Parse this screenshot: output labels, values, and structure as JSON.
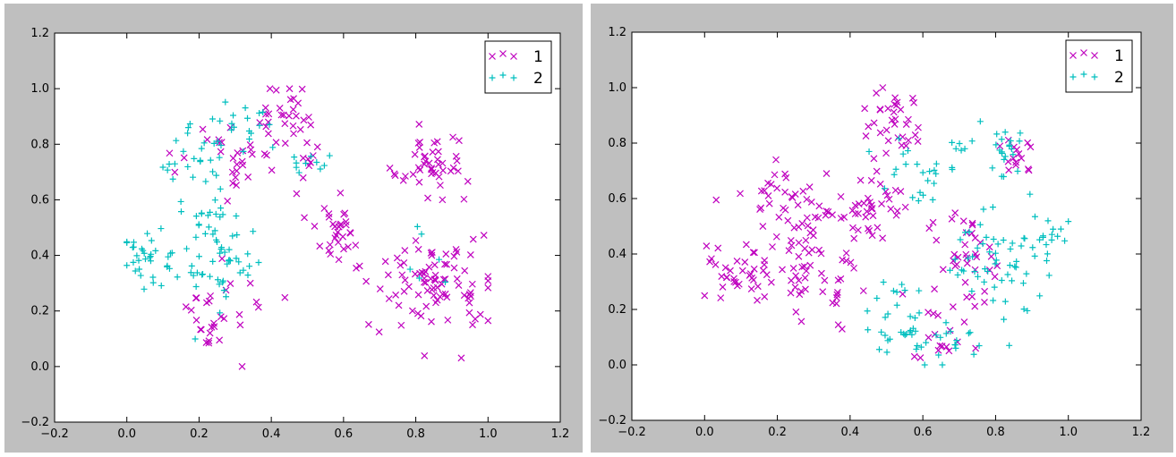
{
  "chart_data": [
    {
      "type": "scatter",
      "title": "",
      "xlabel": "",
      "ylabel": "",
      "xlim": [
        -0.2,
        1.2
      ],
      "ylim": [
        -0.2,
        1.2
      ],
      "x_ticks": [
        "−0.2",
        "0.0",
        "0.2",
        "0.4",
        "0.6",
        "0.8",
        "1.0",
        "1.2"
      ],
      "y_ticks": [
        "−0.2",
        "0.0",
        "0.2",
        "0.4",
        "0.6",
        "0.8",
        "1.0",
        "1.2"
      ],
      "grid": false,
      "legend": "top-right",
      "series": [
        {
          "name": "1",
          "marker": "x",
          "color": "#bf00bf",
          "clusters": [
            {
              "cx": 0.44,
              "cy": 0.92,
              "sx": 0.04,
              "sy": 0.05,
              "n": 25
            },
            {
              "cx": 0.3,
              "cy": 0.7,
              "sx": 0.08,
              "sy": 0.08,
              "n": 35
            },
            {
              "cx": 0.25,
              "cy": 0.2,
              "sx": 0.07,
              "sy": 0.08,
              "n": 30
            },
            {
              "cx": 0.58,
              "cy": 0.48,
              "sx": 0.03,
              "sy": 0.06,
              "n": 30
            },
            {
              "cx": 0.84,
              "cy": 0.73,
              "sx": 0.05,
              "sy": 0.05,
              "n": 45
            },
            {
              "cx": 0.85,
              "cy": 0.3,
              "sx": 0.08,
              "sy": 0.09,
              "n": 90
            },
            {
              "cx": 0.5,
              "cy": 0.75,
              "sx": 0.02,
              "sy": 0.03,
              "n": 8
            }
          ]
        },
        {
          "name": "2",
          "marker": "+",
          "color": "#00bfbf",
          "clusters": [
            {
              "cx": 0.05,
              "cy": 0.39,
              "sx": 0.04,
              "sy": 0.05,
              "n": 30
            },
            {
              "cx": 0.25,
              "cy": 0.42,
              "sx": 0.06,
              "sy": 0.14,
              "n": 70
            },
            {
              "cx": 0.3,
              "cy": 0.88,
              "sx": 0.05,
              "sy": 0.05,
              "n": 20
            },
            {
              "cx": 0.2,
              "cy": 0.75,
              "sx": 0.05,
              "sy": 0.05,
              "n": 20
            },
            {
              "cx": 0.5,
              "cy": 0.75,
              "sx": 0.03,
              "sy": 0.03,
              "n": 10
            },
            {
              "cx": 0.85,
              "cy": 0.4,
              "sx": 0.05,
              "sy": 0.1,
              "n": 6
            }
          ]
        }
      ],
      "seed": 17
    },
    {
      "type": "scatter",
      "title": "",
      "xlabel": "",
      "ylabel": "",
      "xlim": [
        -0.2,
        1.2
      ],
      "ylim": [
        -0.2,
        1.2
      ],
      "x_ticks": [
        "−0.2",
        "0.0",
        "0.2",
        "0.4",
        "0.6",
        "0.8",
        "1.0",
        "1.2"
      ],
      "y_ticks": [
        "−0.2",
        "0.0",
        "0.2",
        "0.4",
        "0.6",
        "0.8",
        "1.0",
        "1.2"
      ],
      "grid": false,
      "legend": "top-right",
      "series": [
        {
          "name": "1",
          "marker": "x",
          "color": "#bf00bf",
          "clusters": [
            {
              "cx": 0.1,
              "cy": 0.33,
              "sx": 0.06,
              "sy": 0.05,
              "n": 40
            },
            {
              "cx": 0.22,
              "cy": 0.55,
              "sx": 0.06,
              "sy": 0.08,
              "n": 50
            },
            {
              "cx": 0.32,
              "cy": 0.3,
              "sx": 0.06,
              "sy": 0.08,
              "n": 40
            },
            {
              "cx": 0.52,
              "cy": 0.88,
              "sx": 0.04,
              "sy": 0.06,
              "n": 35
            },
            {
              "cx": 0.45,
              "cy": 0.55,
              "sx": 0.06,
              "sy": 0.08,
              "n": 40
            },
            {
              "cx": 0.72,
              "cy": 0.4,
              "sx": 0.06,
              "sy": 0.08,
              "n": 35
            },
            {
              "cx": 0.65,
              "cy": 0.15,
              "sx": 0.05,
              "sy": 0.08,
              "n": 20
            },
            {
              "cx": 0.85,
              "cy": 0.75,
              "sx": 0.04,
              "sy": 0.06,
              "n": 15
            }
          ]
        },
        {
          "name": "2",
          "marker": "+",
          "color": "#00bfbf",
          "clusters": [
            {
              "cx": 0.6,
              "cy": 0.1,
              "sx": 0.08,
              "sy": 0.05,
              "n": 40
            },
            {
              "cx": 0.8,
              "cy": 0.35,
              "sx": 0.08,
              "sy": 0.1,
              "n": 55
            },
            {
              "cx": 0.6,
              "cy": 0.7,
              "sx": 0.05,
              "sy": 0.06,
              "n": 25
            },
            {
              "cx": 0.82,
              "cy": 0.78,
              "sx": 0.05,
              "sy": 0.05,
              "n": 25
            },
            {
              "cx": 0.95,
              "cy": 0.45,
              "sx": 0.03,
              "sy": 0.04,
              "n": 15
            },
            {
              "cx": 0.5,
              "cy": 0.25,
              "sx": 0.05,
              "sy": 0.05,
              "n": 10
            }
          ]
        }
      ],
      "seed": 91
    }
  ]
}
